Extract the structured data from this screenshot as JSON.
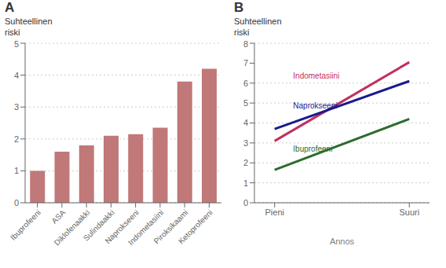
{
  "chart_data": [
    {
      "type": "bar",
      "title": "A",
      "ylabel": "Suhteellinen riski",
      "categories": [
        "Ibuprofeeni",
        "ASA",
        "Diklofenaakki",
        "Sulindaakki",
        "Naprokseeni",
        "Indometasiini",
        "Piroksikaami",
        "Ketoprofeeni"
      ],
      "values": [
        1.0,
        1.6,
        1.8,
        2.1,
        2.15,
        2.35,
        3.8,
        4.2
      ],
      "color": "#c07878",
      "ylim": [
        0,
        5
      ],
      "yticks": [
        0,
        1,
        2,
        3,
        4,
        5
      ],
      "grid": true
    },
    {
      "type": "line",
      "title": "B",
      "ylabel": "Suhteellinen riski",
      "xlabel": "Annos",
      "x": [
        0,
        1
      ],
      "xlim": [
        -0.15,
        1.15
      ],
      "xticks": [
        {
          "value": 0,
          "label": "Pieni"
        },
        {
          "value": 1,
          "label": "Suuri"
        }
      ],
      "ylim": [
        0,
        8
      ],
      "yticks": [
        0,
        1,
        2,
        3,
        4,
        5,
        6,
        7,
        8
      ],
      "grid": true,
      "series": [
        {
          "name": "Indometasiini",
          "color": "#c03060",
          "values": [
            3.1,
            7.05
          ]
        },
        {
          "name": "Naprokseeni",
          "color": "#1a1a8c",
          "values": [
            3.7,
            6.1
          ]
        },
        {
          "name": "Ibuprofeeni",
          "color": "#2e6b2e",
          "values": [
            1.65,
            4.2
          ]
        }
      ],
      "annotations": [
        {
          "text": "Indometasiini",
          "x": 0.12,
          "y": 6.35,
          "color": "#c03060"
        },
        {
          "text": "Naprokseeni",
          "x": 0.12,
          "y": 4.85,
          "color": "#1a1a8c"
        },
        {
          "text": "Ibuprofeeni",
          "x": 0.12,
          "y": 2.7,
          "color": "#2e6b2e"
        }
      ]
    }
  ]
}
